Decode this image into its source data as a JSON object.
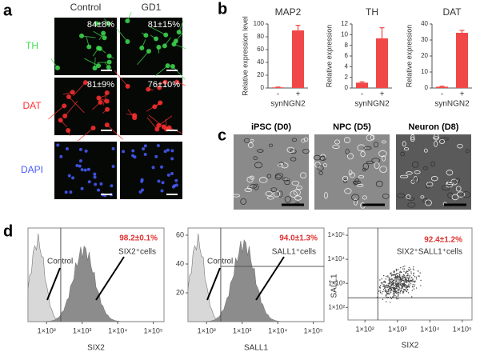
{
  "panel_labels": [
    "a",
    "b",
    "c",
    "d"
  ],
  "panel_a": {
    "columns": [
      "Control",
      "GD1"
    ],
    "rows": [
      "TH",
      "DAT",
      "DAPI"
    ],
    "percentages": [
      [
        "84±8%",
        "81±15%"
      ],
      [
        "81±9%",
        "76±10%"
      ]
    ]
  },
  "chart_data": [
    {
      "type": "bar",
      "title": "MAP2",
      "ylabel": "Relative expression level",
      "xlabel": "synNGN2",
      "categories": [
        "-",
        "+"
      ],
      "values": [
        1,
        90
      ],
      "errors": [
        0.5,
        8
      ],
      "color": "#f04848",
      "ylim": [
        0,
        100
      ],
      "yticks": [
        0,
        20,
        40,
        60,
        80,
        100
      ]
    },
    {
      "type": "bar",
      "title": "TH",
      "ylabel": "Relative expression",
      "xlabel": "synNGN2",
      "categories": [
        "-",
        "+"
      ],
      "values": [
        1,
        9.3
      ],
      "errors": [
        0.15,
        2
      ],
      "color": "#f04848",
      "ylim": [
        0,
        12
      ],
      "yticks": [
        0,
        2,
        4,
        6,
        8,
        10,
        12
      ]
    },
    {
      "type": "bar",
      "title": "DAT",
      "ylabel": "Relative expression",
      "xlabel": "synNGN2",
      "categories": [
        "-",
        "+"
      ],
      "values": [
        0.8,
        34.5
      ],
      "errors": [
        0.3,
        1.5
      ],
      "color": "#f04848",
      "ylim": [
        0,
        40
      ],
      "yticks": [
        0,
        10,
        20,
        30,
        40
      ]
    }
  ],
  "panel_c": {
    "labels": [
      "iPSC (D0)",
      "NPC (D5)",
      "Neuron (D8)"
    ]
  },
  "panel_d": {
    "histograms": [
      {
        "xlabel": "SIX2",
        "xlim": [
          30,
          200000
        ],
        "xticks": [
          {
            "value": 100,
            "label": "1×10²"
          },
          {
            "value": 1000,
            "label": "1×10³"
          },
          {
            "value": 10000,
            "label": "1×10⁴"
          },
          {
            "value": 100000,
            "label": "1×10⁵"
          }
        ],
        "percentage": "98.2±0.1%",
        "population": "SIX2⁺cells",
        "control": "Control"
      },
      {
        "xlabel": "SALL1",
        "xlim": [
          30,
          200000
        ],
        "ylim": [
          0,
          65
        ],
        "yticks": [
          20,
          40,
          60
        ],
        "xticks": [
          {
            "value": 100,
            "label": "1×10²"
          },
          {
            "value": 1000,
            "label": "1×10³"
          },
          {
            "value": 10000,
            "label": "1×10⁴"
          },
          {
            "value": 100000,
            "label": "1×10⁵"
          }
        ],
        "percentage": "94.0±1.3%",
        "population": "SALL1⁺cells",
        "control": "Control"
      }
    ],
    "scatter": {
      "xlabel": "SIX2",
      "ylabel": "SALL1",
      "xlim": [
        30,
        200000
      ],
      "ylim": [
        30,
        200000
      ],
      "xticks": [
        {
          "value": 100,
          "label": "1×10²"
        },
        {
          "value": 1000,
          "label": "1×10³"
        },
        {
          "value": 10000,
          "label": "1×10⁴"
        },
        {
          "value": 100000,
          "label": "1×10⁵"
        }
      ],
      "yticks": [
        {
          "value": 100,
          "label": "1×10²"
        },
        {
          "value": 1000,
          "label": "1×10³"
        },
        {
          "value": 10000,
          "label": "1×10⁴"
        },
        {
          "value": 100000,
          "label": "1×10⁵"
        }
      ],
      "percentage": "92.4±1.2%",
      "population": "SIX2⁺SALL1⁺cells"
    }
  }
}
